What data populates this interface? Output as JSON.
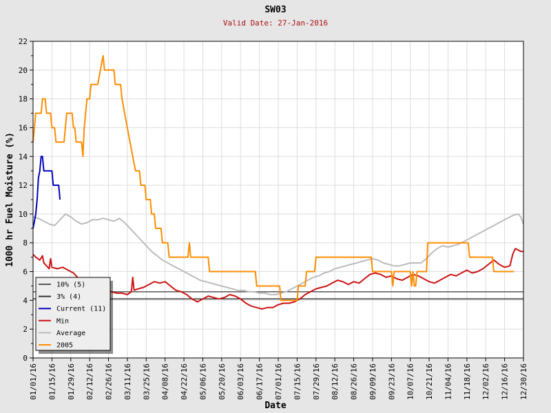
{
  "chart_data": {
    "type": "line",
    "title": "SW03",
    "subtitle": "Valid Date: 27-Jan-2016",
    "xlabel": "Date",
    "ylabel": "1000 hr Fuel Moisture (%)",
    "ylim": [
      0,
      22
    ],
    "yticks": [
      0,
      2,
      4,
      6,
      8,
      10,
      12,
      14,
      16,
      18,
      20,
      22
    ],
    "xlim": [
      0,
      364
    ],
    "xticks": [
      {
        "day": 0,
        "label": "01/01/16"
      },
      {
        "day": 14,
        "label": "01/15/16"
      },
      {
        "day": 28,
        "label": "01/29/16"
      },
      {
        "day": 42,
        "label": "02/12/16"
      },
      {
        "day": 56,
        "label": "02/26/16"
      },
      {
        "day": 70,
        "label": "03/11/16"
      },
      {
        "day": 84,
        "label": "03/25/16"
      },
      {
        "day": 98,
        "label": "04/08/16"
      },
      {
        "day": 112,
        "label": "04/22/16"
      },
      {
        "day": 126,
        "label": "05/06/16"
      },
      {
        "day": 140,
        "label": "05/20/16"
      },
      {
        "day": 154,
        "label": "06/03/16"
      },
      {
        "day": 168,
        "label": "06/17/16"
      },
      {
        "day": 182,
        "label": "07/01/16"
      },
      {
        "day": 196,
        "label": "07/15/16"
      },
      {
        "day": 210,
        "label": "07/29/16"
      },
      {
        "day": 224,
        "label": "08/12/16"
      },
      {
        "day": 238,
        "label": "08/26/16"
      },
      {
        "day": 252,
        "label": "09/09/16"
      },
      {
        "day": 266,
        "label": "09/23/16"
      },
      {
        "day": 280,
        "label": "10/07/16"
      },
      {
        "day": 294,
        "label": "10/21/16"
      },
      {
        "day": 308,
        "label": "11/04/16"
      },
      {
        "day": 322,
        "label": "11/18/16"
      },
      {
        "day": 336,
        "label": "12/02/16"
      },
      {
        "day": 350,
        "label": "12/16/16"
      },
      {
        "day": 364,
        "label": "12/30/16"
      }
    ],
    "grid": true,
    "legend_position": "bottom-left",
    "series": [
      {
        "name": "10% (5)",
        "color": "#555555",
        "kind": "hline",
        "value": 4.6
      },
      {
        "name": "3% (4)",
        "color": "#333333",
        "kind": "hline",
        "value": 4.1
      },
      {
        "name": "Current (11)",
        "color": "#0000bb",
        "points": [
          [
            0,
            9
          ],
          [
            1,
            9.5
          ],
          [
            2,
            10
          ],
          [
            3,
            11
          ],
          [
            4,
            12.5
          ],
          [
            5,
            13
          ],
          [
            6,
            14
          ],
          [
            7,
            14
          ],
          [
            8,
            13
          ],
          [
            10,
            13
          ],
          [
            14,
            13
          ],
          [
            15,
            12
          ],
          [
            19,
            12
          ],
          [
            20,
            11
          ]
        ]
      },
      {
        "name": "Min",
        "color": "#cc1111",
        "points": [
          [
            0,
            7.2
          ],
          [
            2,
            7
          ],
          [
            5,
            6.8
          ],
          [
            7,
            7.1
          ],
          [
            8,
            6.6
          ],
          [
            10,
            6.4
          ],
          [
            12,
            6.2
          ],
          [
            13,
            6.9
          ],
          [
            14,
            6.3
          ],
          [
            18,
            6.2
          ],
          [
            22,
            6.3
          ],
          [
            26,
            6.1
          ],
          [
            30,
            5.9
          ],
          [
            34,
            5.5
          ],
          [
            38,
            5.2
          ],
          [
            42,
            5
          ],
          [
            46,
            4.9
          ],
          [
            50,
            4.8
          ],
          [
            54,
            4.7
          ],
          [
            58,
            4.6
          ],
          [
            62,
            4.5
          ],
          [
            66,
            4.5
          ],
          [
            70,
            4.4
          ],
          [
            73,
            4.6
          ],
          [
            74,
            5.6
          ],
          [
            75,
            4.7
          ],
          [
            78,
            4.8
          ],
          [
            82,
            4.9
          ],
          [
            86,
            5.1
          ],
          [
            90,
            5.3
          ],
          [
            94,
            5.2
          ],
          [
            98,
            5.3
          ],
          [
            102,
            5
          ],
          [
            106,
            4.7
          ],
          [
            110,
            4.6
          ],
          [
            114,
            4.4
          ],
          [
            118,
            4.1
          ],
          [
            122,
            3.9
          ],
          [
            126,
            4.1
          ],
          [
            130,
            4.3
          ],
          [
            134,
            4.2
          ],
          [
            138,
            4.1
          ],
          [
            142,
            4.2
          ],
          [
            146,
            4.4
          ],
          [
            150,
            4.3
          ],
          [
            154,
            4.1
          ],
          [
            158,
            3.8
          ],
          [
            162,
            3.6
          ],
          [
            166,
            3.5
          ],
          [
            170,
            3.4
          ],
          [
            174,
            3.5
          ],
          [
            178,
            3.5
          ],
          [
            182,
            3.7
          ],
          [
            186,
            3.8
          ],
          [
            190,
            3.8
          ],
          [
            194,
            3.9
          ],
          [
            198,
            4.1
          ],
          [
            202,
            4.4
          ],
          [
            206,
            4.6
          ],
          [
            210,
            4.8
          ],
          [
            214,
            4.9
          ],
          [
            218,
            5
          ],
          [
            222,
            5.2
          ],
          [
            226,
            5.4
          ],
          [
            230,
            5.3
          ],
          [
            234,
            5.1
          ],
          [
            238,
            5.3
          ],
          [
            242,
            5.2
          ],
          [
            246,
            5.5
          ],
          [
            250,
            5.8
          ],
          [
            254,
            5.9
          ],
          [
            258,
            5.8
          ],
          [
            262,
            5.6
          ],
          [
            266,
            5.7
          ],
          [
            270,
            5.5
          ],
          [
            274,
            5.4
          ],
          [
            278,
            5.6
          ],
          [
            282,
            5.8
          ],
          [
            286,
            5.7
          ],
          [
            290,
            5.5
          ],
          [
            294,
            5.3
          ],
          [
            298,
            5.2
          ],
          [
            302,
            5.4
          ],
          [
            306,
            5.6
          ],
          [
            310,
            5.8
          ],
          [
            314,
            5.7
          ],
          [
            318,
            5.9
          ],
          [
            322,
            6.1
          ],
          [
            326,
            5.9
          ],
          [
            330,
            6
          ],
          [
            334,
            6.2
          ],
          [
            338,
            6.5
          ],
          [
            342,
            6.8
          ],
          [
            346,
            6.5
          ],
          [
            350,
            6.3
          ],
          [
            354,
            6.4
          ],
          [
            356,
            7.2
          ],
          [
            358,
            7.6
          ],
          [
            362,
            7.4
          ],
          [
            364,
            7.4
          ]
        ]
      },
      {
        "name": "Average",
        "color": "#bbbbbb",
        "points": [
          [
            0,
            9.8
          ],
          [
            4,
            9.7
          ],
          [
            8,
            9.5
          ],
          [
            12,
            9.3
          ],
          [
            16,
            9.2
          ],
          [
            20,
            9.6
          ],
          [
            24,
            10
          ],
          [
            28,
            9.8
          ],
          [
            32,
            9.5
          ],
          [
            36,
            9.3
          ],
          [
            40,
            9.4
          ],
          [
            44,
            9.6
          ],
          [
            48,
            9.6
          ],
          [
            52,
            9.7
          ],
          [
            56,
            9.6
          ],
          [
            60,
            9.5
          ],
          [
            64,
            9.7
          ],
          [
            68,
            9.4
          ],
          [
            72,
            9
          ],
          [
            76,
            8.6
          ],
          [
            80,
            8.2
          ],
          [
            84,
            7.8
          ],
          [
            88,
            7.4
          ],
          [
            92,
            7.1
          ],
          [
            96,
            6.8
          ],
          [
            100,
            6.6
          ],
          [
            104,
            6.4
          ],
          [
            108,
            6.2
          ],
          [
            112,
            6
          ],
          [
            116,
            5.8
          ],
          [
            120,
            5.6
          ],
          [
            124,
            5.4
          ],
          [
            128,
            5.3
          ],
          [
            132,
            5.2
          ],
          [
            136,
            5.1
          ],
          [
            140,
            5
          ],
          [
            144,
            4.9
          ],
          [
            148,
            4.8
          ],
          [
            152,
            4.7
          ],
          [
            156,
            4.7
          ],
          [
            160,
            4.6
          ],
          [
            164,
            4.6
          ],
          [
            168,
            4.5
          ],
          [
            172,
            4.5
          ],
          [
            176,
            4.4
          ],
          [
            180,
            4.4
          ],
          [
            184,
            4.5
          ],
          [
            188,
            4.6
          ],
          [
            192,
            4.8
          ],
          [
            196,
            5
          ],
          [
            200,
            5.2
          ],
          [
            204,
            5.4
          ],
          [
            208,
            5.6
          ],
          [
            212,
            5.7
          ],
          [
            216,
            5.9
          ],
          [
            220,
            6
          ],
          [
            224,
            6.2
          ],
          [
            228,
            6.3
          ],
          [
            232,
            6.4
          ],
          [
            236,
            6.5
          ],
          [
            240,
            6.6
          ],
          [
            244,
            6.7
          ],
          [
            248,
            6.8
          ],
          [
            252,
            6.9
          ],
          [
            256,
            6.8
          ],
          [
            260,
            6.6
          ],
          [
            264,
            6.5
          ],
          [
            268,
            6.4
          ],
          [
            272,
            6.4
          ],
          [
            276,
            6.5
          ],
          [
            280,
            6.6
          ],
          [
            284,
            6.6
          ],
          [
            288,
            6.6
          ],
          [
            292,
            6.9
          ],
          [
            296,
            7.3
          ],
          [
            300,
            7.6
          ],
          [
            304,
            7.8
          ],
          [
            308,
            7.7
          ],
          [
            312,
            7.8
          ],
          [
            316,
            7.9
          ],
          [
            320,
            8.1
          ],
          [
            324,
            8.3
          ],
          [
            328,
            8.5
          ],
          [
            332,
            8.7
          ],
          [
            336,
            8.9
          ],
          [
            340,
            9.1
          ],
          [
            344,
            9.3
          ],
          [
            348,
            9.5
          ],
          [
            352,
            9.7
          ],
          [
            356,
            9.9
          ],
          [
            360,
            10
          ],
          [
            362,
            9.8
          ],
          [
            364,
            9.3
          ]
        ]
      },
      {
        "name": "2005",
        "color": "#ff8c00",
        "points": [
          [
            0,
            15
          ],
          [
            1,
            16
          ],
          [
            2,
            17
          ],
          [
            6,
            17
          ],
          [
            7,
            18
          ],
          [
            9,
            18
          ],
          [
            10,
            17
          ],
          [
            13,
            17
          ],
          [
            14,
            16
          ],
          [
            16,
            16
          ],
          [
            17,
            15
          ],
          [
            23,
            15
          ],
          [
            24,
            16
          ],
          [
            25,
            17
          ],
          [
            29,
            17
          ],
          [
            30,
            16
          ],
          [
            31,
            16
          ],
          [
            32,
            15
          ],
          [
            36,
            15
          ],
          [
            37,
            14
          ],
          [
            38,
            16
          ],
          [
            39,
            17
          ],
          [
            40,
            18
          ],
          [
            42,
            18
          ],
          [
            43,
            19
          ],
          [
            48,
            19
          ],
          [
            50,
            20
          ],
          [
            52,
            21
          ],
          [
            53,
            20
          ],
          [
            60,
            20
          ],
          [
            61,
            19
          ],
          [
            65,
            19
          ],
          [
            66,
            18
          ],
          [
            68,
            17
          ],
          [
            70,
            16
          ],
          [
            72,
            15
          ],
          [
            74,
            14
          ],
          [
            76,
            13
          ],
          [
            79,
            13
          ],
          [
            80,
            12
          ],
          [
            83,
            12
          ],
          [
            84,
            11
          ],
          [
            87,
            11
          ],
          [
            88,
            10
          ],
          [
            90,
            10
          ],
          [
            91,
            9
          ],
          [
            95,
            9
          ],
          [
            96,
            8
          ],
          [
            100,
            8
          ],
          [
            101,
            7
          ],
          [
            115,
            7
          ],
          [
            116,
            8
          ],
          [
            117,
            7
          ],
          [
            130,
            7
          ],
          [
            131,
            6
          ],
          [
            165,
            6
          ],
          [
            166,
            5
          ],
          [
            183,
            5
          ],
          [
            184,
            4
          ],
          [
            196,
            4
          ],
          [
            197,
            5
          ],
          [
            202,
            5
          ],
          [
            203,
            6
          ],
          [
            209,
            6
          ],
          [
            210,
            7
          ],
          [
            251,
            7
          ],
          [
            252,
            6
          ],
          [
            266,
            6
          ],
          [
            267,
            5
          ],
          [
            268,
            6
          ],
          [
            280,
            6
          ],
          [
            281,
            5
          ],
          [
            282,
            6
          ],
          [
            283,
            5
          ],
          [
            284,
            5
          ],
          [
            285,
            6
          ],
          [
            292,
            6
          ],
          [
            293,
            8
          ],
          [
            323,
            8
          ],
          [
            324,
            7
          ],
          [
            341,
            7
          ],
          [
            342,
            6
          ],
          [
            357,
            6
          ]
        ]
      }
    ]
  }
}
